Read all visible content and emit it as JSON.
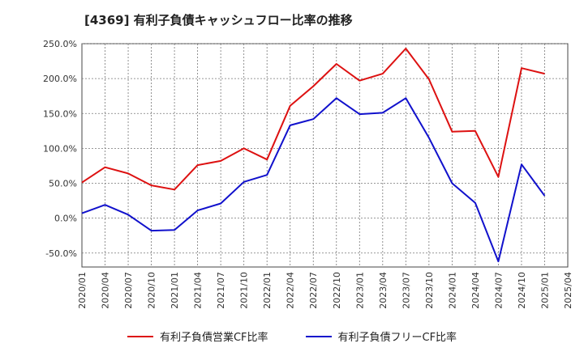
{
  "chart_data": {
    "type": "line",
    "title": "[4369]  有利子負債キャッシュフロー比率の推移",
    "x": [
      "2020/01",
      "2020/04",
      "2020/07",
      "2020/10",
      "2021/01",
      "2021/04",
      "2021/07",
      "2021/10",
      "2022/01",
      "2022/04",
      "2022/07",
      "2022/10",
      "2023/01",
      "2023/04",
      "2023/07",
      "2023/10",
      "2024/01",
      "2024/04",
      "2024/07",
      "2024/10",
      "2025/01",
      "2025/04"
    ],
    "ylim": [
      -70,
      250
    ],
    "yticks": [
      "-50.0%",
      "0.0%",
      "50.0%",
      "100.0%",
      "150.0%",
      "200.0%",
      "250.0%"
    ],
    "ytick_values": [
      -50,
      0,
      50,
      100,
      150,
      200,
      250
    ],
    "grid": true,
    "legend_position": "bottom",
    "series": [
      {
        "name": "有利子負債営業CF比率",
        "color": "#dd1111",
        "values": [
          51,
          73,
          64,
          47,
          41,
          76,
          82,
          100,
          84,
          161,
          189,
          221,
          197,
          207,
          243,
          199,
          124,
          125,
          59,
          215,
          207,
          null
        ]
      },
      {
        "name": "有利子負債フリーCF比率",
        "color": "#1111cc",
        "values": [
          7,
          19,
          5,
          -18,
          -17,
          11,
          21,
          52,
          62,
          133,
          142,
          172,
          149,
          151,
          172,
          115,
          50,
          22,
          -62,
          77,
          32,
          null
        ]
      }
    ]
  }
}
